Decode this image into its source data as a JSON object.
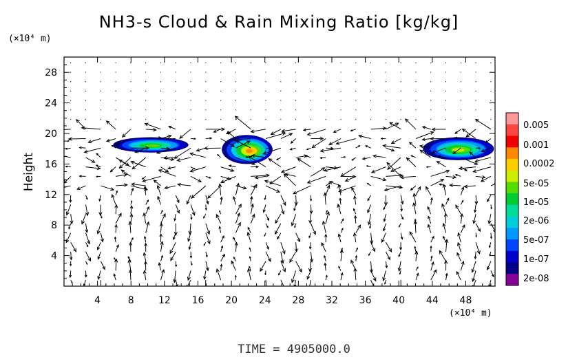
{
  "chart_data": {
    "type": "heatmap",
    "title": "NH3-s Cloud & Rain Mixing Ratio [kg/kg]",
    "ylabel": "Height",
    "x_unit": "(×10⁴ m)",
    "y_unit": "(×10⁴ m)",
    "footer": "TIME  =  4905000.0",
    "xlim": [
      0,
      51.5
    ],
    "ylim": [
      0,
      30
    ],
    "x_ticks": [
      4,
      8,
      12,
      16,
      20,
      24,
      28,
      32,
      36,
      40,
      44,
      48
    ],
    "y_ticks": [
      4,
      8,
      12,
      16,
      20,
      24,
      28
    ],
    "colorbar": {
      "labels": [
        "0.005",
        "0.001",
        "0.0002",
        "5e-05",
        "1e-05",
        "2e-06",
        "5e-07",
        "1e-07",
        "2e-08"
      ],
      "colors": [
        "#ff9999",
        "#ff4444",
        "#ee0000",
        "#ff8800",
        "#ffcc00",
        "#ccee00",
        "#55dd00",
        "#00cc33",
        "#00dd99",
        "#00ccdd",
        "#0099ff",
        "#0044ff",
        "#0000cc",
        "#000088",
        "#880099"
      ]
    },
    "cloud_regions": [
      {
        "x": [
          6,
          15
        ],
        "y": [
          17.5,
          19.5
        ],
        "peak_ratio": "1e-05"
      },
      {
        "x": [
          19,
          25
        ],
        "y": [
          16,
          19.8
        ],
        "peak_ratio": "0.001"
      },
      {
        "x": [
          43,
          51.5
        ],
        "y": [
          16.5,
          19.5
        ],
        "peak_ratio": "5e-05"
      }
    ],
    "vector_field": "wind vectors on a regular grid (arrows)"
  }
}
